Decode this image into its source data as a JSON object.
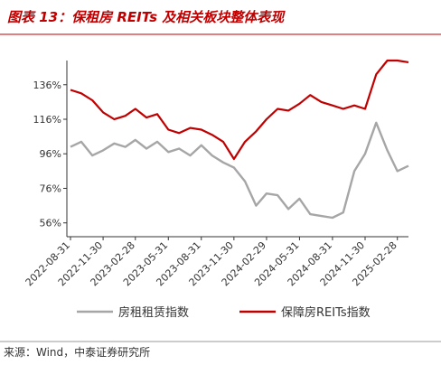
{
  "chart_data": {
    "type": "line",
    "title": "图表 13：保租房 REITs 及相关板块整体表现",
    "source": "来源：Wind，中泰证券研究所",
    "x": [
      "2022-08-31",
      "2022-09-30",
      "2022-10-31",
      "2022-11-30",
      "2022-12-31",
      "2023-01-31",
      "2023-02-28",
      "2023-03-31",
      "2023-04-30",
      "2023-05-31",
      "2023-06-30",
      "2023-07-31",
      "2023-08-31",
      "2023-09-30",
      "2023-10-31",
      "2023-11-30",
      "2023-12-31",
      "2024-01-31",
      "2024-02-29",
      "2024-03-31",
      "2024-04-30",
      "2024-05-31",
      "2024-06-30",
      "2024-07-31",
      "2024-08-31",
      "2024-09-30",
      "2024-10-31",
      "2024-11-30",
      "2024-12-31",
      "2025-01-31",
      "2025-02-28",
      "2025-03-31"
    ],
    "series": [
      {
        "name": "房租租赁指数",
        "color": "#a6a6a6",
        "values": [
          100,
          103,
          95,
          98,
          102,
          100,
          104,
          99,
          103,
          97,
          99,
          95,
          101,
          95,
          91,
          88,
          80,
          66,
          73,
          72,
          64,
          70,
          61,
          60,
          59,
          62,
          86,
          96,
          114,
          98,
          86,
          89
        ]
      },
      {
        "name": "保障房REITs指数",
        "color": "#c00000",
        "values": [
          133,
          131,
          127,
          120,
          116,
          118,
          122,
          117,
          119,
          110,
          108,
          111,
          110,
          107,
          103,
          93,
          103,
          109,
          116,
          122,
          121,
          125,
          130,
          126,
          124,
          122,
          124,
          122,
          142,
          150,
          150,
          149
        ]
      }
    ],
    "xlim": [
      "2022-08-31",
      "2025-03-31"
    ],
    "xticks": [
      "2022-08-31",
      "2022-11-30",
      "2023-02-28",
      "2023-05-31",
      "2023-08-31",
      "2023-11-30",
      "2024-02-29",
      "2024-05-31",
      "2024-08-31",
      "2024-11-30",
      "2025-02-28"
    ],
    "ylim": [
      48,
      150
    ],
    "yticks": [
      {
        "value": 56,
        "label": "56%"
      },
      {
        "value": 76,
        "label": "76%"
      },
      {
        "value": 96,
        "label": "96%"
      },
      {
        "value": 116,
        "label": "116%"
      },
      {
        "value": 136,
        "label": "136%"
      }
    ],
    "legend": "bottom"
  }
}
